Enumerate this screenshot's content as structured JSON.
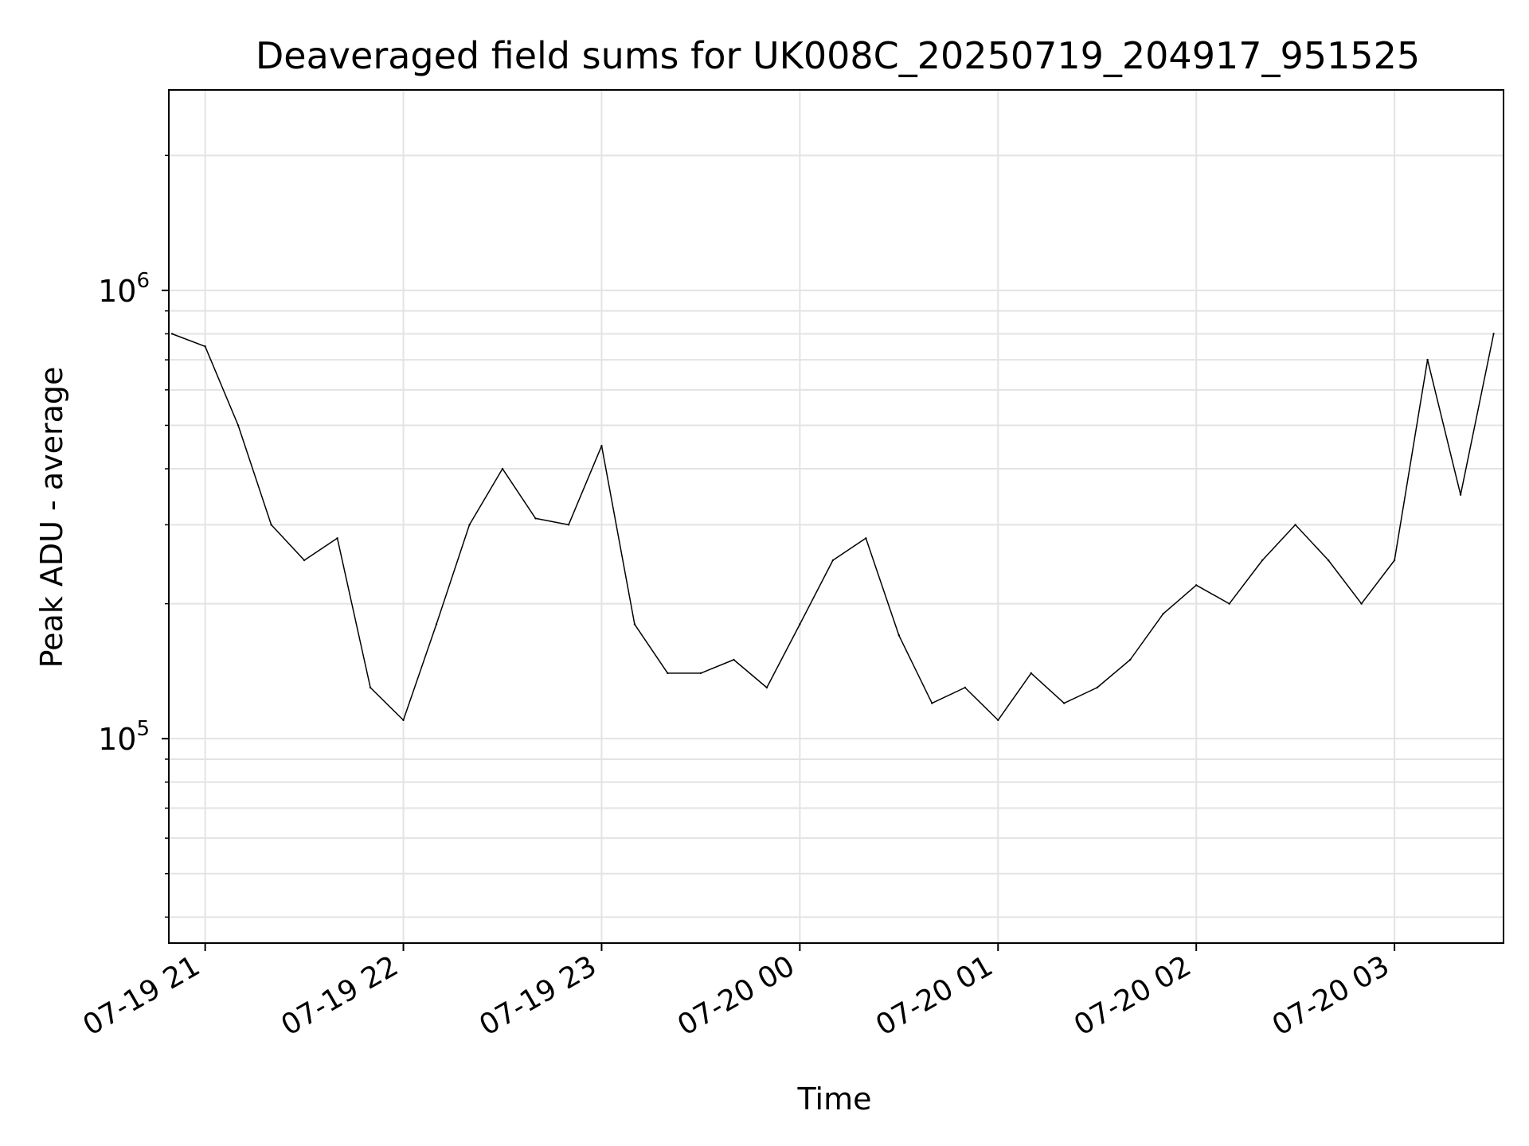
{
  "chart_data": {
    "type": "line",
    "title": "Deaveraged field sums for UK008C_20250719_204917_951525",
    "xlabel": "Time",
    "ylabel": "Peak ADU - average",
    "yscale": "log",
    "xlim": [
      "2025-07-19 20:49",
      "2025-07-20 03:33"
    ],
    "ylim": [
      35000,
      2800000
    ],
    "grid": true,
    "line_color": "#000000",
    "x_ticks": [
      "07-19 21",
      "07-19 22",
      "07-19 23",
      "07-20 00",
      "07-20 01",
      "07-20 02",
      "07-20 03"
    ],
    "y_ticks": [
      {
        "base": "10",
        "exp": "5",
        "value": 100000
      },
      {
        "base": "10",
        "exp": "6",
        "value": 1000000
      }
    ],
    "series": [
      {
        "x": [
          "2025-07-19 20:50",
          "2025-07-19 21:00",
          "2025-07-19 21:10",
          "2025-07-19 21:20",
          "2025-07-19 21:30",
          "2025-07-19 21:40",
          "2025-07-19 21:50",
          "2025-07-19 22:00",
          "2025-07-19 22:10",
          "2025-07-19 22:20",
          "2025-07-19 22:30",
          "2025-07-19 22:40",
          "2025-07-19 22:50",
          "2025-07-19 23:00",
          "2025-07-19 23:10",
          "2025-07-19 23:20",
          "2025-07-19 23:30",
          "2025-07-19 23:40",
          "2025-07-19 23:50",
          "2025-07-20 00:00",
          "2025-07-20 00:10",
          "2025-07-20 00:20",
          "2025-07-20 00:30",
          "2025-07-20 00:40",
          "2025-07-20 00:50",
          "2025-07-20 01:00",
          "2025-07-20 01:10",
          "2025-07-20 01:20",
          "2025-07-20 01:30",
          "2025-07-20 01:40",
          "2025-07-20 01:50",
          "2025-07-20 02:00",
          "2025-07-20 02:10",
          "2025-07-20 02:20",
          "2025-07-20 02:30",
          "2025-07-20 02:40",
          "2025-07-20 02:50",
          "2025-07-20 03:00",
          "2025-07-20 03:10",
          "2025-07-20 03:20",
          "2025-07-20 03:30"
        ],
        "y": [
          800000,
          750000,
          500000,
          300000,
          250000,
          280000,
          130000,
          110000,
          180000,
          300000,
          400000,
          310000,
          300000,
          450000,
          180000,
          140000,
          140000,
          150000,
          130000,
          180000,
          250000,
          280000,
          170000,
          120000,
          130000,
          110000,
          140000,
          120000,
          130000,
          150000,
          190000,
          220000,
          200000,
          250000,
          300000,
          250000,
          200000,
          250000,
          700000,
          350000,
          800000
        ]
      }
    ]
  }
}
